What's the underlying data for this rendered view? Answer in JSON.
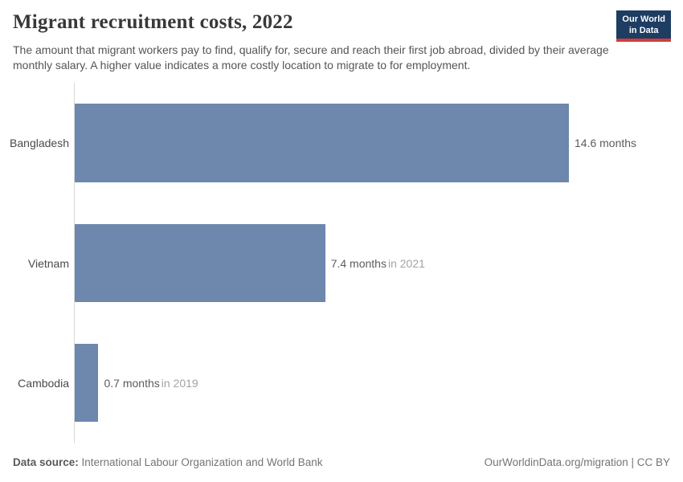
{
  "header": {
    "logo": {
      "line1": "Our World",
      "line2": "in Data"
    }
  },
  "chart_data": {
    "type": "bar",
    "orientation": "horizontal",
    "title": "Migrant recruitment costs, 2022",
    "subtitle": "The amount that migrant workers pay to find, qualify for, secure and reach their first job abroad, divided by their average monthly salary. A higher value indicates a more costly location to migrate to for employment.",
    "unit": "months",
    "categories": [
      "Bangladesh",
      "Vietnam",
      "Cambodia"
    ],
    "values": [
      14.6,
      7.4,
      0.7
    ],
    "bar_labels": [
      {
        "value_text": "14.6 months",
        "year_text": ""
      },
      {
        "value_text": "7.4 months",
        "year_text": "in 2021"
      },
      {
        "value_text": "0.7 months",
        "year_text": "in 2019"
      }
    ],
    "xlim": [
      0,
      14.6
    ],
    "value_axis_labels_visible": false,
    "grid": false,
    "legend": "none",
    "bar_color": "#6e87ac",
    "axis_color": "#d9d9d9"
  },
  "footer": {
    "source_label": "Data source:",
    "source_text": " International Labour Organization and World Bank",
    "right_text": "OurWorldinData.org/migration | CC BY"
  }
}
